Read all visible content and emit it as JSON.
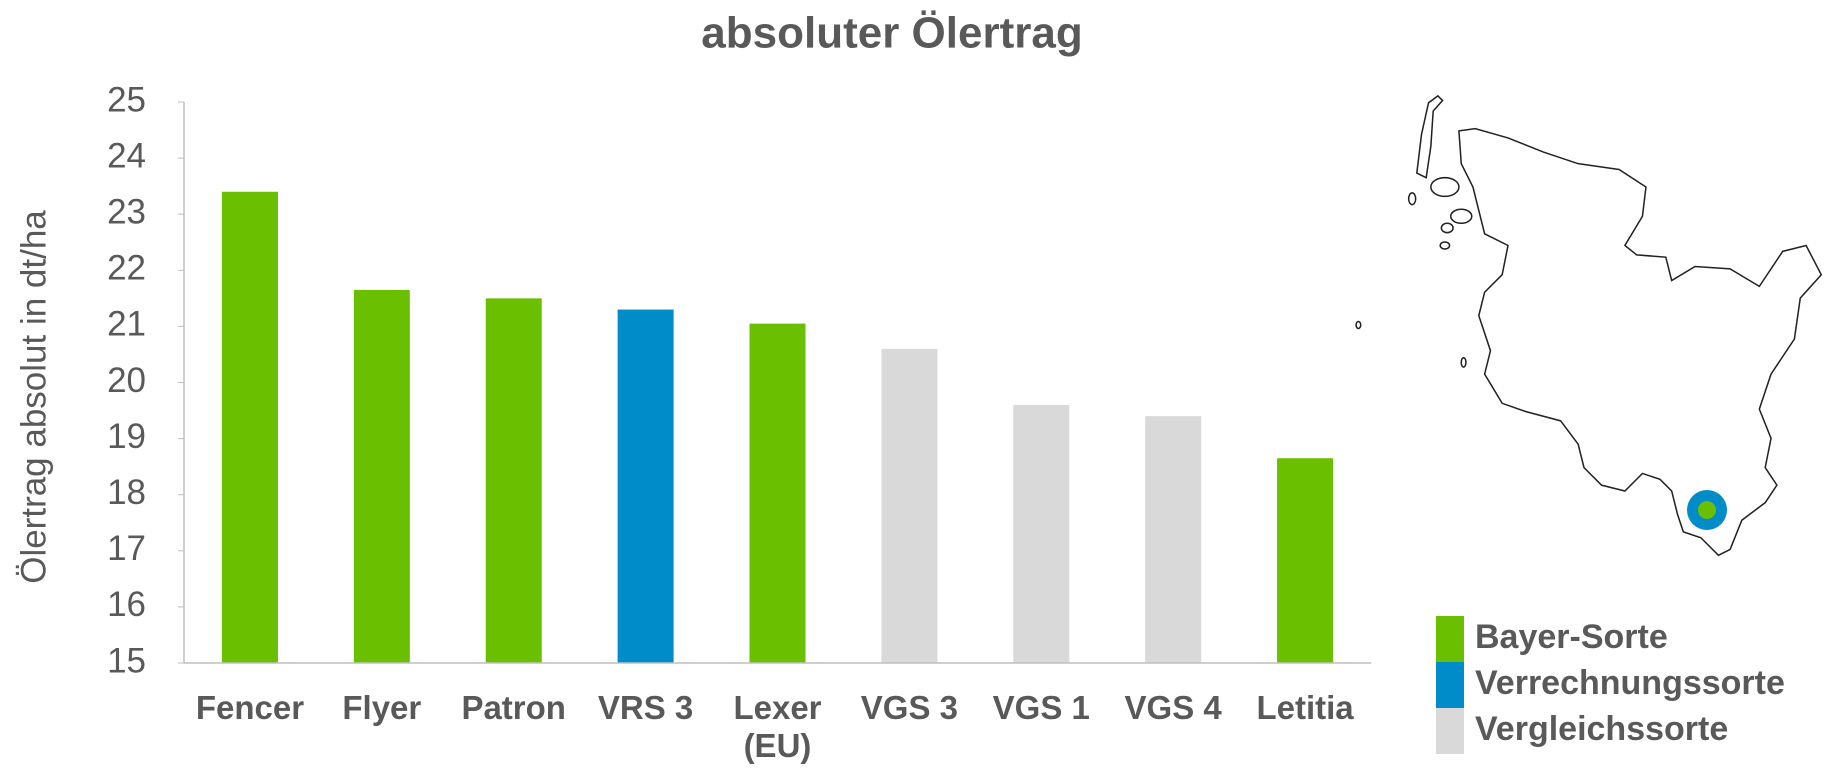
{
  "chart_data": {
    "type": "bar",
    "title": "absoluter Ölertrag",
    "ylabel": "Ölertrag absolut in dt/ha",
    "categories": [
      "Fencer",
      "Flyer",
      "Patron",
      "VRS 3",
      "Lexer (EU)",
      "VGS 3",
      "VGS 1",
      "VGS 4",
      "Letitia"
    ],
    "values": [
      23.4,
      21.65,
      21.5,
      21.3,
      21.05,
      20.6,
      19.6,
      19.4,
      18.65
    ],
    "colors": [
      "#6abf00",
      "#6abf00",
      "#6abf00",
      "#008cc8",
      "#6abf00",
      "#d9d9d9",
      "#d9d9d9",
      "#d9d9d9",
      "#6abf00"
    ],
    "legend": [
      {
        "name": "Bayer-Sorte",
        "color": "#6abf00"
      },
      {
        "name": "Verrechnungssorte",
        "color": "#008cc8"
      },
      {
        "name": "Vergleichssorte",
        "color": "#d9d9d9"
      }
    ],
    "ylim": [
      15,
      25
    ],
    "yticks": [
      15,
      16,
      17,
      18,
      19,
      20,
      21,
      22,
      23,
      24,
      25
    ],
    "grid": false
  }
}
